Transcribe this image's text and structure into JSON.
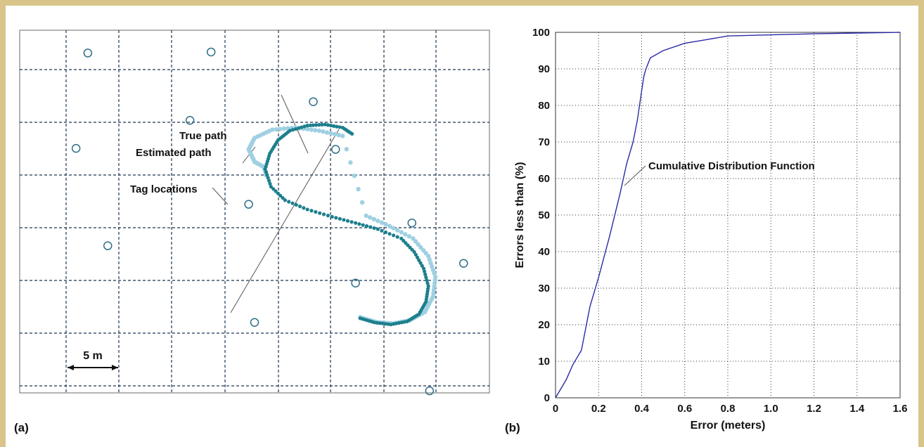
{
  "panel_a": {
    "label": "(a)",
    "scale_label": "5 m",
    "labels": {
      "true_path": "True path",
      "estimated_path": "Estimated path",
      "tag_locations": "Tag locations"
    },
    "colors": {
      "grid": "#1a3550",
      "tag": "#2e6f86",
      "true_path": "#9fd0e2",
      "estimated_path": "#1d7f8c",
      "leader": "#555555"
    }
  },
  "panel_b": {
    "label": "(b)"
  },
  "chart_data": [
    {
      "type": "scatter",
      "panel": "(a)",
      "annotations": [
        "True path",
        "Estimated path",
        "Tag locations"
      ],
      "scale_bar": "5 m",
      "grid": true,
      "x_extent_m": [
        0,
        40
      ],
      "y_extent_m": [
        0,
        35
      ],
      "series": [
        {
          "name": "Tag locations",
          "marker": "circle-open",
          "color": "#2e6f86",
          "x": [
            5.8,
            16.3,
            14.5,
            4.8,
            25.0,
            26.9,
            19.5,
            7.5,
            33.4,
            37.8,
            28.6,
            20.0,
            34.9
          ],
          "y": [
            32.8,
            32.9,
            26.3,
            23.6,
            28.1,
            23.5,
            18.2,
            14.2,
            16.4,
            12.5,
            10.6,
            6.8,
            0.2
          ]
        },
        {
          "name": "True path",
          "color": "#9fd0e2",
          "x": [
            21.0,
            20.8,
            20.0,
            19.5,
            20.0,
            21.5,
            23.5,
            25.5,
            27.5,
            29.5,
            31.5,
            33.5,
            34.8,
            35.4,
            35.2,
            34.5,
            33.2,
            31.8,
            30.5,
            29.0
          ],
          "y": [
            21.0,
            21.8,
            22.3,
            23.5,
            24.6,
            25.4,
            25.6,
            25.3,
            24.8,
            17.1,
            16.1,
            14.9,
            13.2,
            11.2,
            9.3,
            7.8,
            7.0,
            6.7,
            6.8,
            7.3
          ]
        },
        {
          "name": "Estimated path",
          "color": "#1d7f8c",
          "x": [
            28.3,
            27.5,
            26.0,
            24.5,
            23.0,
            22.0,
            21.3,
            20.9,
            21.4,
            22.6,
            24.5,
            26.6,
            28.6,
            30.5,
            32.5,
            33.6,
            34.4,
            34.8,
            34.6,
            34.0,
            33.0,
            31.6,
            30.2,
            29.0
          ],
          "y": [
            25.0,
            25.6,
            25.9,
            25.8,
            25.3,
            24.4,
            23.1,
            21.6,
            19.9,
            18.6,
            17.7,
            17.0,
            16.4,
            15.8,
            14.9,
            13.6,
            12.0,
            10.3,
            8.8,
            7.6,
            6.9,
            6.6,
            6.8,
            7.2
          ]
        }
      ]
    },
    {
      "type": "line",
      "panel": "(b)",
      "xlabel": "Error (meters)",
      "ylabel": "Errors less than (%)",
      "xlim": [
        0,
        1.6
      ],
      "ylim": [
        0,
        100
      ],
      "xticks": [
        "0",
        "0.2",
        "0.4",
        "0.6",
        "0.8",
        "1.0",
        "1.2",
        "1.4",
        "1.6"
      ],
      "yticks": [
        "0",
        "10",
        "20",
        "30",
        "40",
        "50",
        "60",
        "70",
        "80",
        "90",
        "100"
      ],
      "grid": true,
      "annotation": "Cumulative Distribution Function",
      "series": [
        {
          "color": "#2a2aa6",
          "x": [
            0.0,
            0.02,
            0.05,
            0.08,
            0.1,
            0.12,
            0.14,
            0.16,
            0.2,
            0.25,
            0.3,
            0.33,
            0.36,
            0.38,
            0.4,
            0.41,
            0.42,
            0.44,
            0.5,
            0.6,
            0.7,
            0.8,
            1.0,
            1.2,
            1.4,
            1.6
          ],
          "y": [
            0,
            2,
            5,
            9,
            11,
            13,
            19,
            25,
            33,
            44,
            56,
            64,
            70,
            76,
            84,
            88,
            90,
            93,
            95,
            97,
            98,
            99,
            99.3,
            99.6,
            99.8,
            100
          ]
        }
      ]
    }
  ]
}
